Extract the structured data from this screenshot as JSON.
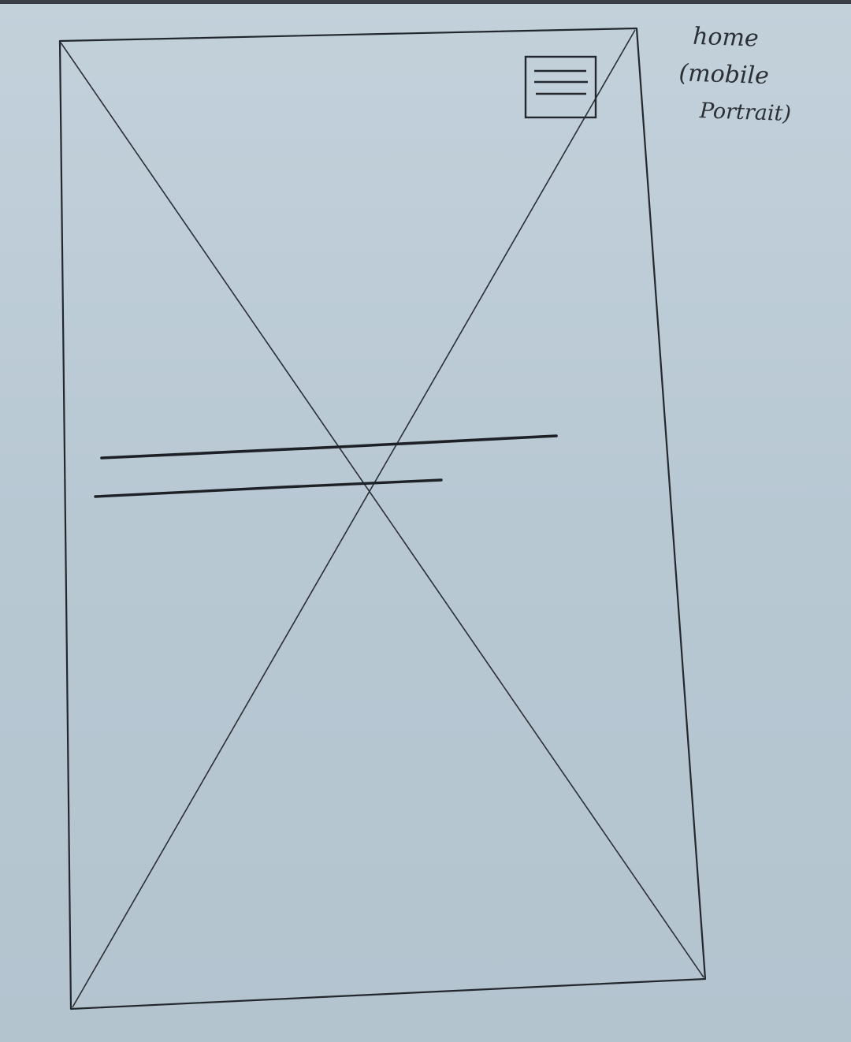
{
  "sketch": {
    "subject": "mobile home screen wireframe",
    "elements": {
      "image_placeholder": "crossed rectangle (full-screen image)",
      "menu_icon": "hamburger-icon",
      "headline_lines": 2
    },
    "colors": {
      "paper": "#b9c9d4",
      "ink": "#1f242b"
    }
  },
  "annotation": {
    "line1": "home",
    "line2": "(mobile",
    "line3": "Portrait)"
  }
}
